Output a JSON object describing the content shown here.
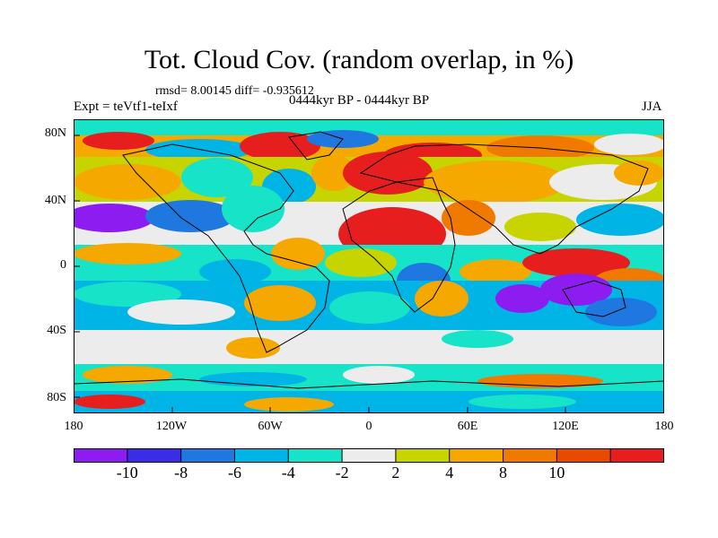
{
  "title": "Tot. Cloud Cov. (random overlap, in %)",
  "stats": "rmsd= 8.00145 diff= -0.935612",
  "experiment": "Expt = teVtf1-teIxf",
  "period": "0444kyr BP - 0444kyr BP",
  "season": "JJA",
  "lat_labels": [
    "80N",
    "40N",
    "0",
    "40S",
    "80S"
  ],
  "lon_labels": [
    "180",
    "120W",
    "60W",
    "0",
    "60E",
    "120E",
    "180"
  ],
  "colorbar": {
    "labels": [
      "-10",
      "-8",
      "-6",
      "-4",
      "-2",
      "2",
      "4",
      "8",
      "10"
    ],
    "colors": [
      "#8c1cf0",
      "#3a2de6",
      "#1f78e0",
      "#00b4e6",
      "#17e3c8",
      "#ececec",
      "#c8d400",
      "#f5a800",
      "#f07a00",
      "#e84a00",
      "#e61e1e"
    ]
  },
  "chart_data": {
    "type": "heatmap",
    "variable": "Total cloud cover difference",
    "units": "%",
    "x_range": [
      -180,
      180
    ],
    "y_range": [
      -90,
      90
    ],
    "levels": [
      -10,
      -8,
      -6,
      -4,
      -2,
      2,
      4,
      8,
      10
    ],
    "rmsd": 8.00145,
    "diff": -0.935612
  }
}
